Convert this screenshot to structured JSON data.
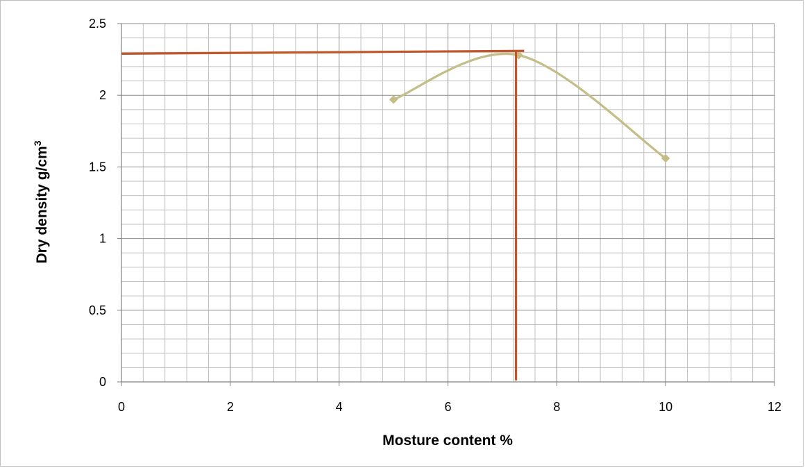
{
  "chart_data": {
    "type": "scatter",
    "title": "",
    "xlabel": "Mosture content %",
    "ylabel_main": "Dry density g/cm",
    "ylabel_sup": "3",
    "xlim": [
      0,
      12
    ],
    "ylim": [
      0,
      2.5
    ],
    "x_major_step": 2,
    "x_minor_step": 0.4,
    "y_major_step": 0.5,
    "y_minor_step": 0.1,
    "x_tick_labels": [
      "0",
      "2",
      "4",
      "6",
      "8",
      "10",
      "12"
    ],
    "y_tick_labels": [
      "0",
      "0.5",
      "1",
      "1.5",
      "2",
      "2.5"
    ],
    "grid": true,
    "legend": "none",
    "series": [
      {
        "style": "smooth-line-markers",
        "color": "#c4bd87",
        "x": [
          5,
          7.3,
          10
        ],
        "y": [
          1.97,
          2.28,
          1.56
        ]
      },
      {
        "style": "line",
        "color": "#c0562b",
        "x": [
          0,
          7.4
        ],
        "y": [
          2.29,
          2.31
        ]
      },
      {
        "style": "line",
        "color": "#c0562b",
        "x": [
          7.25,
          7.25
        ],
        "y": [
          2.31,
          0.01
        ]
      }
    ]
  }
}
